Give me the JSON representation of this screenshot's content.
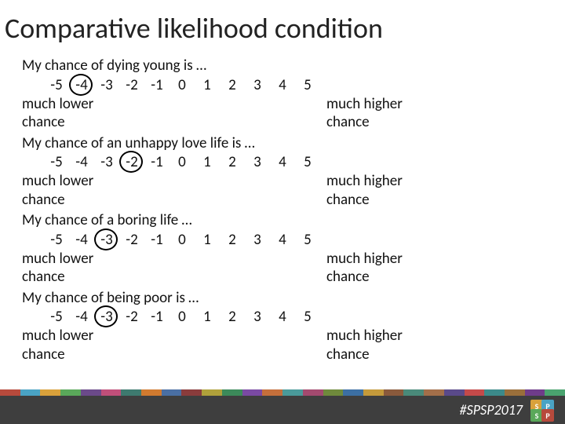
{
  "title": "Comparative likelihood condition",
  "scale_values": [
    "-5",
    "-4",
    "-3",
    "-2",
    "-1",
    "0",
    "1",
    "2",
    "3",
    "4",
    "5"
  ],
  "items": [
    {
      "question": "My chance of dying young is …",
      "circled_index": 1
    },
    {
      "question": "My chance of an unhappy love life is …",
      "circled_index": 3
    },
    {
      "question": "My chance of a boring life …",
      "circled_index": 2
    },
    {
      "question": "My chance of being poor is …",
      "circled_index": 2
    }
  ],
  "anchor_left": [
    "much lower",
    "chance"
  ],
  "anchor_right": [
    "much higher",
    "chance"
  ],
  "footer": {
    "hashtag": "#SPSP2017",
    "logo_letters": [
      "S",
      "P",
      "S",
      "P"
    ]
  },
  "strip_colors": [
    "#b74a3c",
    "#4aa3c4",
    "#d9a13b",
    "#5aa85a",
    "#6b4a8a",
    "#c04f7a",
    "#3e7a6f",
    "#d07a2f",
    "#4a6fa3",
    "#8a3c3c",
    "#b0a13b",
    "#3c8a5a",
    "#7a4aa3",
    "#c46f3b",
    "#4a9a9a",
    "#a34a6f",
    "#6f8a3c",
    "#3c6fa3",
    "#c49a3b",
    "#8a5a3c",
    "#4a8a7a",
    "#a36f4a",
    "#5a4a8a",
    "#c44a4a",
    "#3c8a8a",
    "#9a6f3b",
    "#6f3c8a",
    "#4aa36f"
  ]
}
